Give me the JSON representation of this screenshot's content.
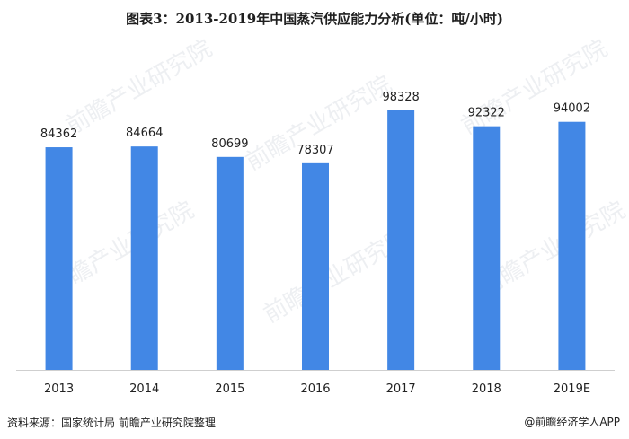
{
  "title": "图表3：2013-2019年中国蒸汽供应能力分析(单位：吨/小时)",
  "source": "资料来源：国家统计局 前瞻产业研究院整理",
  "brand": "@前瞻经济学人APP",
  "watermark": "前瞻产业研究院",
  "colors": {
    "bar": "#4287e5",
    "axis": "#cfcfcf"
  },
  "chart_data": {
    "type": "bar",
    "title": "图表3：2013-2019年中国蒸汽供应能力分析(单位：吨/小时)",
    "categories": [
      "2013",
      "2014",
      "2015",
      "2016",
      "2017",
      "2018",
      "2019E"
    ],
    "values": [
      84362,
      84664,
      80699,
      78307,
      98328,
      92322,
      94002
    ],
    "ylim": [
      0,
      110000
    ],
    "grid": false,
    "legend": "none",
    "data_labels": true
  }
}
